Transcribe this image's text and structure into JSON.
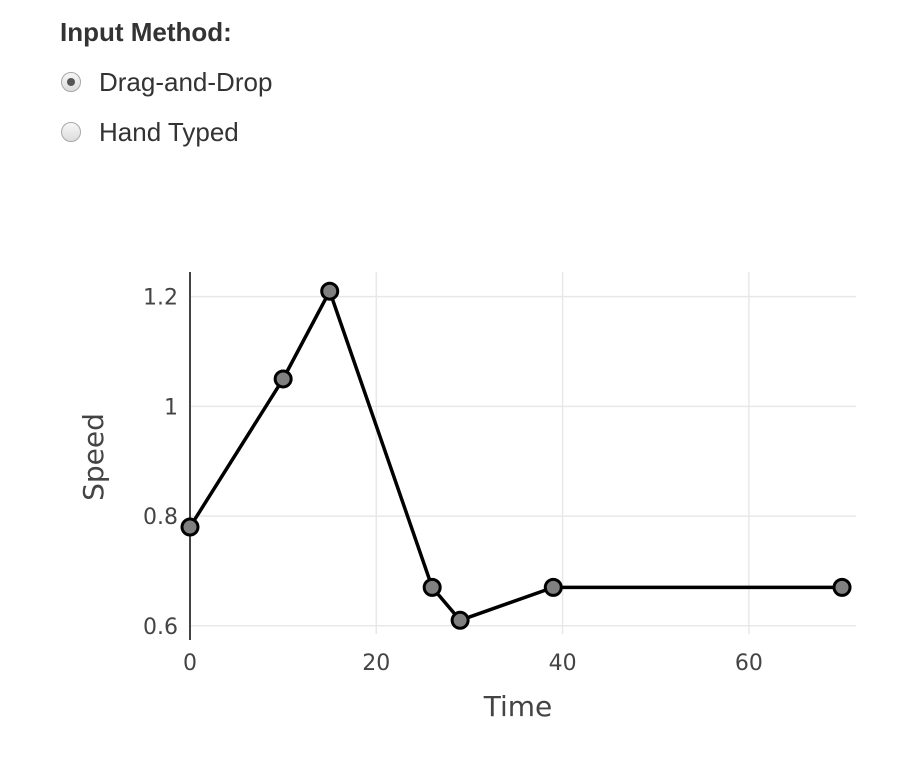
{
  "input_method": {
    "label": "Input Method:",
    "options": [
      {
        "label": "Drag-and-Drop",
        "checked": true
      },
      {
        "label": "Hand Typed",
        "checked": false
      }
    ]
  },
  "chart_data": {
    "type": "line",
    "xlabel": "Time",
    "ylabel": "Speed",
    "xlim": [
      0,
      71.5
    ],
    "ylim": [
      0.585,
      1.245
    ],
    "xticks": [
      0,
      20,
      40,
      60
    ],
    "yticks": [
      0.6,
      0.8,
      1,
      1.2
    ],
    "x_tick_labels": [
      "0",
      "20",
      "40",
      "60"
    ],
    "y_tick_labels": [
      "0.6",
      "0.8",
      "1",
      "1.2"
    ],
    "grid": true,
    "series": [
      {
        "x": [
          0,
          10,
          15,
          26,
          29,
          39,
          70
        ],
        "y": [
          0.78,
          1.05,
          1.21,
          0.67,
          0.61,
          0.67,
          0.67
        ],
        "line_color": "#000000",
        "marker_color": "#808080"
      }
    ]
  }
}
